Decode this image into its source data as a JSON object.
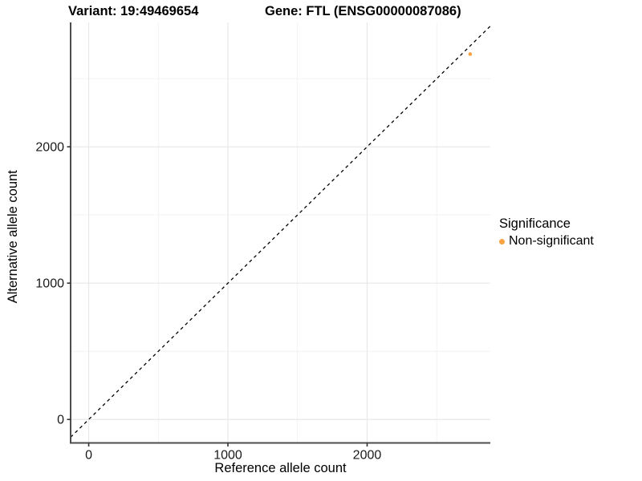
{
  "header": {
    "variant_title": "Variant: 19:49469654",
    "gene_title": "Gene: FTL (ENSG00000087086)"
  },
  "legend": {
    "title": "Significance",
    "items": [
      {
        "label": "Non-significant",
        "color": "#F9A242"
      }
    ]
  },
  "chart_data": {
    "type": "scatter",
    "title": "",
    "xlabel": "Reference allele count",
    "ylabel": "Alternative allele count",
    "xlim": [
      -130,
      2885
    ],
    "ylim": [
      -172,
      2912
    ],
    "xticks": [
      0,
      1000,
      2000
    ],
    "yticks": [
      0,
      1000,
      2000
    ],
    "xticks_minor": [
      500,
      1500,
      2500
    ],
    "yticks_minor": [
      500,
      1500,
      2500
    ],
    "grid": true,
    "legend_position": "right-center",
    "series": [
      {
        "name": "Non-significant",
        "color": "#F9A242",
        "points": [
          {
            "x": 2740,
            "y": 2680
          }
        ]
      }
    ],
    "reference_line": {
      "type": "identity",
      "slope": 1,
      "intercept": 0,
      "style": "dashed",
      "color": "#000000"
    }
  },
  "colors": {
    "axis_line": "#4D4D4D",
    "tick_mark": "#333333",
    "tick_label": "#1A1A1A",
    "axis_title": "#000000",
    "grid_major": "#E8E8E8",
    "grid_minor": "#F2F2F2",
    "background": "#FFFFFF"
  }
}
